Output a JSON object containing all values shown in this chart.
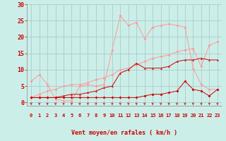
{
  "xlabel": "Vent moyen/en rafales ( km/h )",
  "xlim": [
    -0.5,
    23.5
  ],
  "ylim": [
    -1,
    30
  ],
  "yticks": [
    0,
    5,
    10,
    15,
    20,
    25,
    30
  ],
  "xticks": [
    0,
    1,
    2,
    3,
    4,
    5,
    6,
    7,
    8,
    9,
    10,
    11,
    12,
    13,
    14,
    15,
    16,
    17,
    18,
    19,
    20,
    21,
    22,
    23
  ],
  "background_color": "#cceee8",
  "grid_color": "#aacccc",
  "line1_x": [
    0,
    1,
    2,
    3,
    4,
    5,
    6,
    7,
    8,
    9,
    10,
    11,
    12,
    13,
    14,
    15,
    16,
    17,
    18,
    19,
    20,
    21,
    22,
    23
  ],
  "line1_y": [
    1.5,
    1.5,
    1.5,
    1.5,
    1.5,
    1.5,
    1.5,
    1.5,
    1.5,
    1.5,
    1.5,
    1.5,
    1.5,
    1.5,
    2.0,
    2.5,
    2.5,
    3.0,
    3.5,
    6.5,
    4.0,
    3.5,
    2.0,
    4.0
  ],
  "line1_color": "#cc0000",
  "line1_marker": "D",
  "line2_x": [
    0,
    1,
    2,
    3,
    4,
    5,
    6,
    7,
    8,
    9,
    10,
    11,
    12,
    13,
    14,
    15,
    16,
    17,
    18,
    19,
    20,
    21,
    22,
    23
  ],
  "line2_y": [
    1.5,
    1.5,
    1.5,
    1.5,
    2.0,
    2.5,
    2.5,
    3.0,
    3.5,
    4.5,
    5.0,
    9.0,
    10.0,
    12.0,
    10.5,
    10.5,
    10.5,
    11.0,
    12.5,
    13.0,
    13.0,
    13.5,
    13.0,
    13.0
  ],
  "line2_color": "#cc0000",
  "line2_marker": "^",
  "line3_x": [
    0,
    1,
    2,
    3,
    4,
    5,
    6,
    7,
    8,
    9,
    10,
    11,
    12,
    13,
    14,
    15,
    16,
    17,
    18,
    19,
    20,
    21,
    22,
    23
  ],
  "line3_y": [
    1.5,
    2.5,
    3.5,
    4.0,
    5.0,
    5.5,
    5.5,
    6.0,
    7.0,
    7.5,
    8.5,
    10.0,
    10.5,
    11.5,
    12.5,
    13.5,
    14.0,
    14.5,
    15.5,
    16.0,
    16.5,
    11.0,
    17.5,
    18.5
  ],
  "line3_color": "#ff9999",
  "line3_marker": "D",
  "line4_x": [
    0,
    1,
    2,
    3,
    4,
    5,
    6,
    7,
    8,
    9,
    10,
    11,
    12,
    13,
    14,
    15,
    16,
    17,
    18,
    19,
    20,
    21,
    22,
    23
  ],
  "line4_y": [
    6.5,
    8.5,
    5.5,
    1.0,
    0.5,
    0.5,
    5.0,
    5.5,
    5.0,
    5.5,
    16.0,
    26.5,
    23.5,
    24.5,
    19.5,
    23.0,
    23.5,
    24.0,
    23.5,
    23.0,
    10.5,
    5.5,
    4.0,
    4.0
  ],
  "line4_color": "#ff9999",
  "line4_marker": "D"
}
